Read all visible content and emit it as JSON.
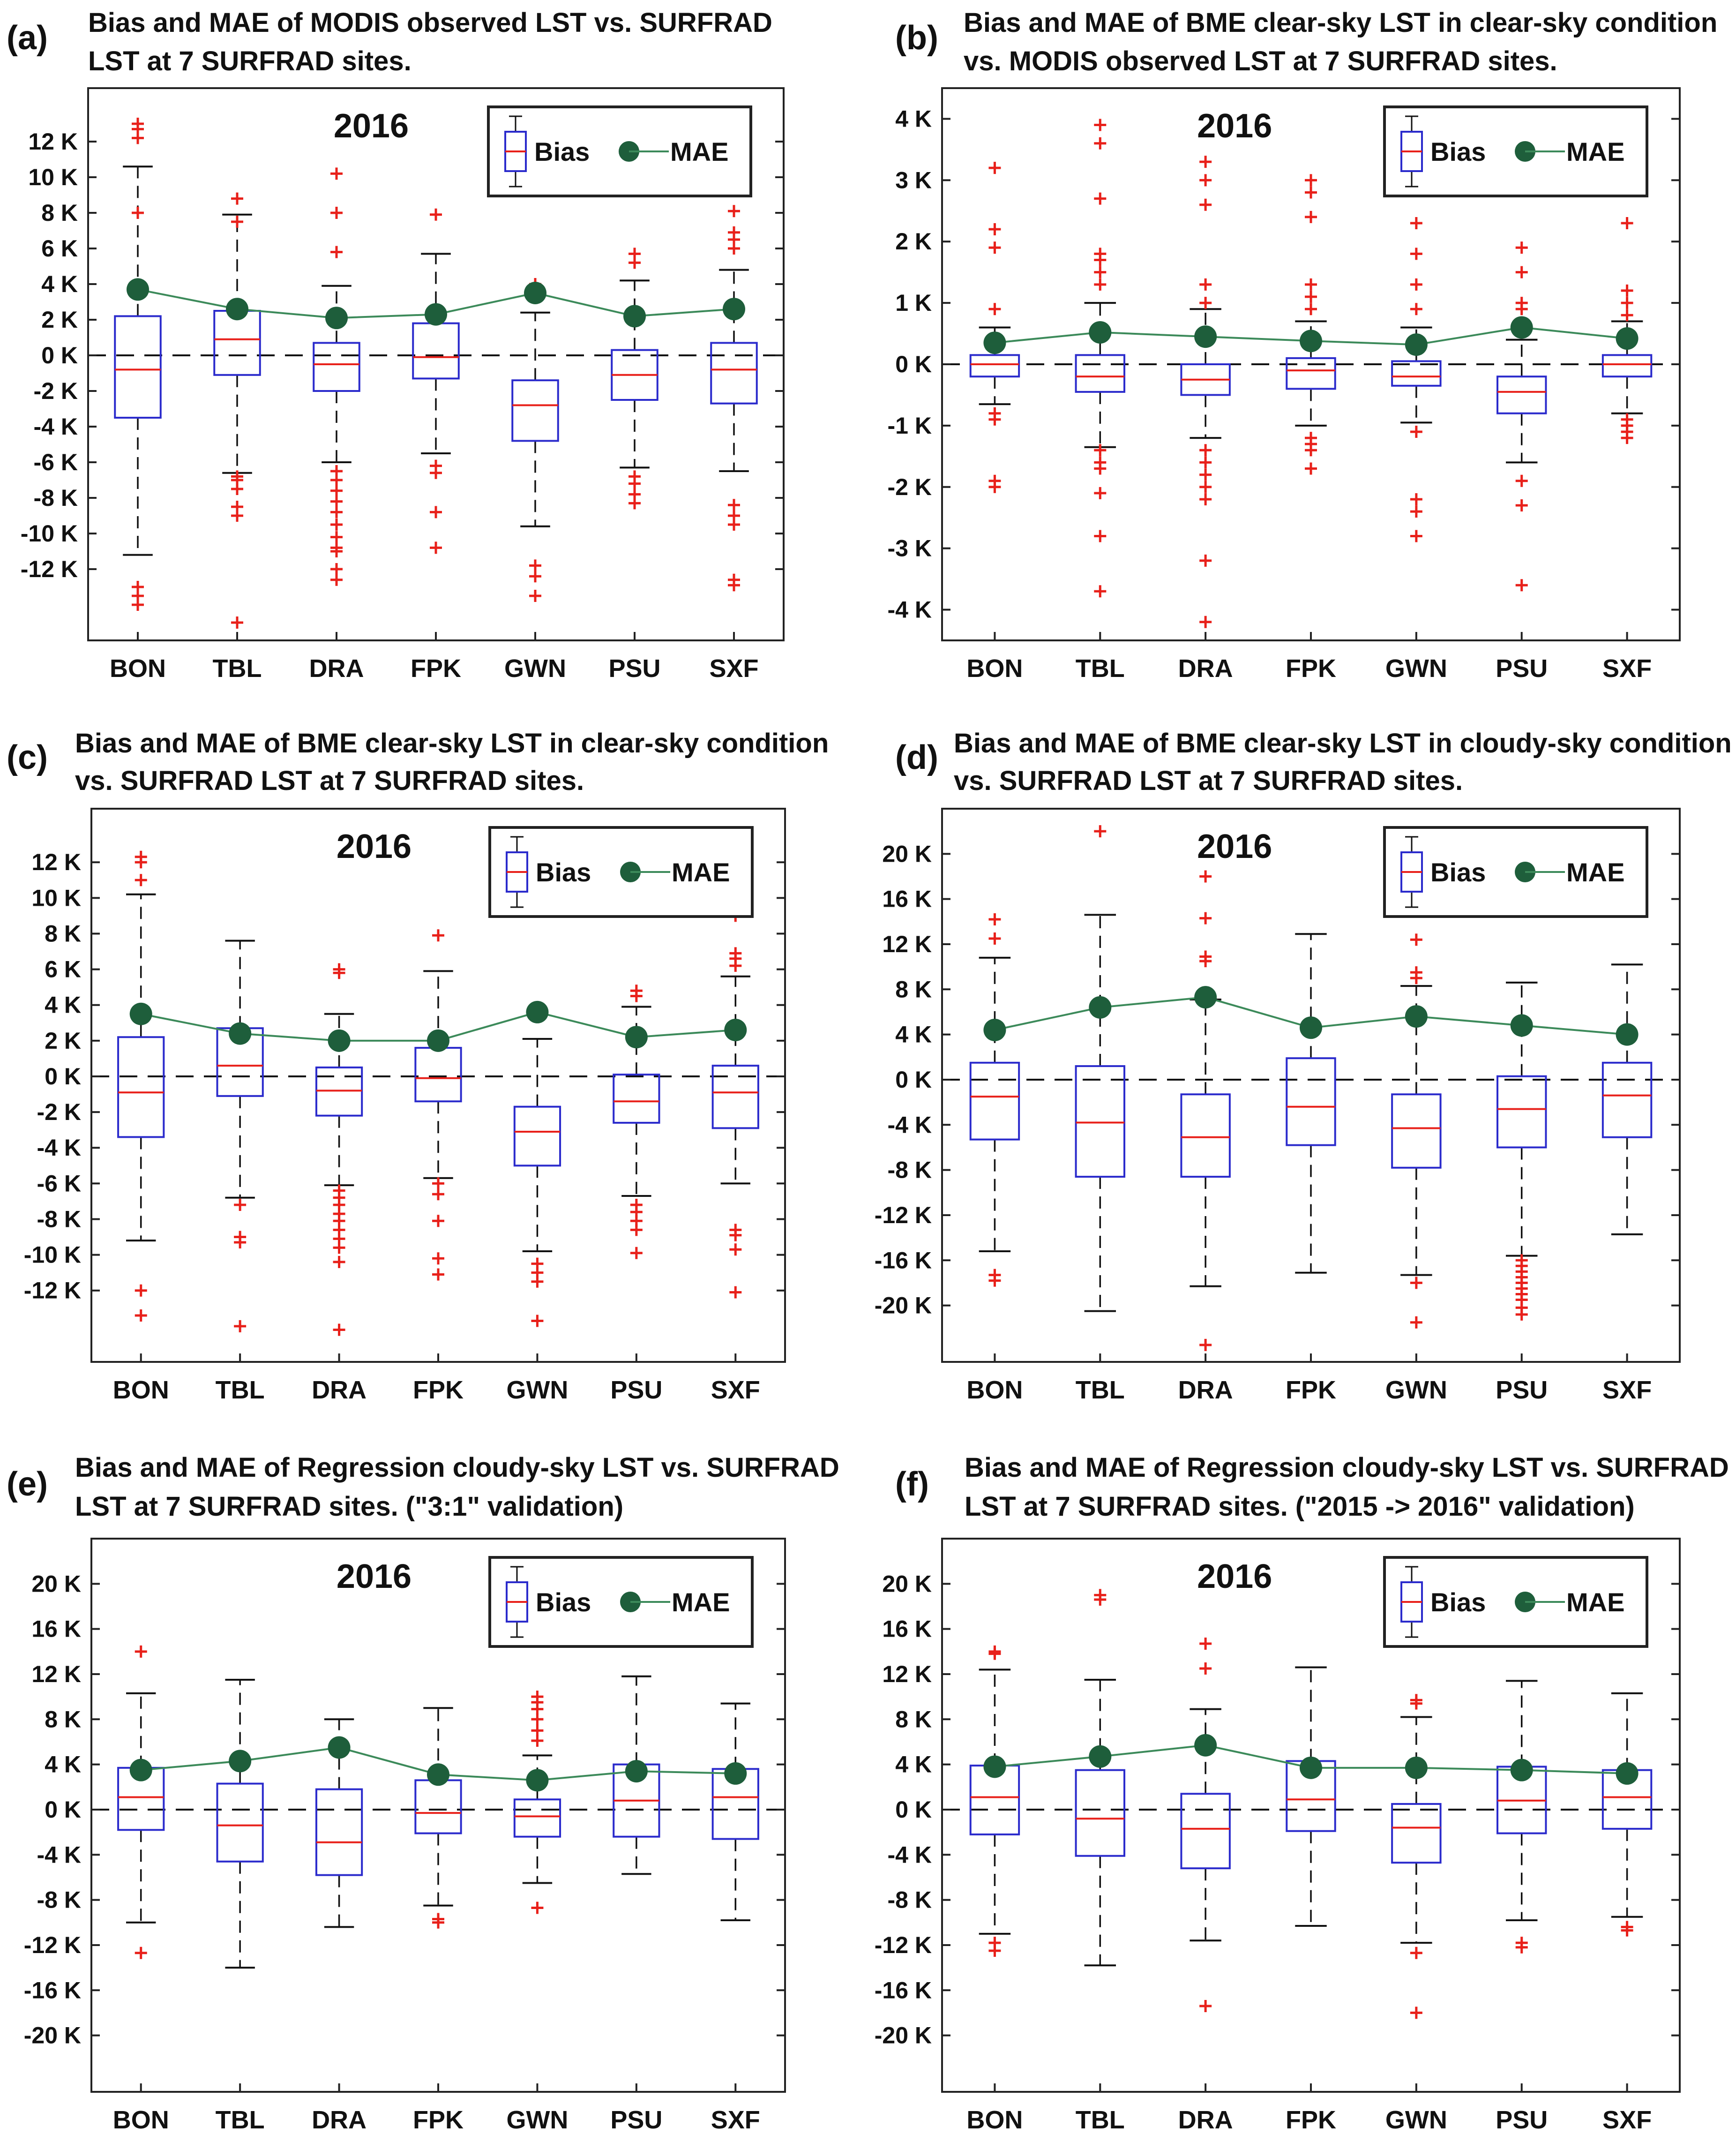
{
  "figure": {
    "site_labels": [
      "BON",
      "TBL",
      "DRA",
      "FPK",
      "GWN",
      "PSU",
      "SXF"
    ],
    "year_label": "2016",
    "legend": {
      "bias": "Bias",
      "mae": "MAE"
    },
    "colors": {
      "box": "#2b2bcc",
      "median": "#e8201a",
      "outlier": "#e8201a",
      "mae": "#1e5e3b",
      "mae_line": "#3c8a5a",
      "whisker": "#111111"
    }
  },
  "chart_data": [
    {
      "id": "a",
      "panel_label": "(a)",
      "type": "boxplot",
      "title_line1": "Bias and MAE of MODIS observed LST vs. SURFRAD",
      "title_line2": "LST at 7 SURFRAD sites.",
      "ylim": [
        -16,
        15
      ],
      "ytick_values": [
        12,
        10,
        8,
        6,
        4,
        2,
        0,
        -2,
        -4,
        -6,
        -8,
        -10,
        -12
      ],
      "ytick_labels": [
        "12 K",
        "10 K",
        "8 K",
        "6 K",
        "4 K",
        "2 K",
        "0 K",
        "-2 K",
        "-4 K",
        "-6 K",
        "-8 K",
        "-10 K",
        "-12 K"
      ],
      "boxes": [
        {
          "site": "BON",
          "wl": -11.2,
          "q1": -3.5,
          "med": -0.8,
          "q3": 2.2,
          "wh": 10.6,
          "out": [
            -13,
            -13.5,
            -14,
            8,
            12.2,
            12.7,
            13
          ]
        },
        {
          "site": "TBL",
          "wl": -6.6,
          "q1": -1.1,
          "med": 0.9,
          "q3": 2.5,
          "wh": 7.9,
          "out": [
            -6.8,
            -7,
            -7.5,
            -8.5,
            -9,
            -15,
            7.5,
            8.8
          ]
        },
        {
          "site": "DRA",
          "wl": -6,
          "q1": -2,
          "med": -0.5,
          "q3": 0.7,
          "wh": 3.9,
          "out": [
            -6.5,
            -7,
            -7.6,
            -8.2,
            -8.8,
            -9.5,
            -10.2,
            -10.8,
            -11,
            -12,
            -12.6,
            5.8,
            8,
            10.2
          ]
        },
        {
          "site": "FPK",
          "wl": -5.5,
          "q1": -1.3,
          "med": -0.1,
          "q3": 1.8,
          "wh": 5.7,
          "out": [
            -6.2,
            -6.6,
            -8.8,
            -10.8,
            7.9
          ]
        },
        {
          "site": "GWN",
          "wl": -9.6,
          "q1": -4.8,
          "med": -2.8,
          "q3": -1.4,
          "wh": 2.4,
          "out": [
            -11.8,
            -12.4,
            -13.5,
            4
          ]
        },
        {
          "site": "PSU",
          "wl": -6.3,
          "q1": -2.5,
          "med": -1.1,
          "q3": 0.3,
          "wh": 4.2,
          "out": [
            -6.8,
            -7.2,
            -7.8,
            -8.3,
            5.2,
            5.7
          ]
        },
        {
          "site": "SXF",
          "wl": -6.5,
          "q1": -2.7,
          "med": -0.8,
          "q3": 0.7,
          "wh": 4.8,
          "out": [
            -8.4,
            -9,
            -9.5,
            -12.6,
            -12.9,
            6,
            6.5,
            6.9,
            8.1
          ]
        }
      ],
      "mae": [
        3.7,
        2.6,
        2.1,
        2.3,
        3.5,
        2.2,
        2.6
      ]
    },
    {
      "id": "b",
      "panel_label": "(b)",
      "type": "boxplot",
      "title_line1": "Bias and MAE of BME clear-sky LST in clear-sky condition",
      "title_line2": "vs. MODIS observed LST at 7 SURFRAD sites.",
      "ylim": [
        -4.5,
        4.5
      ],
      "ytick_values": [
        4,
        3,
        2,
        1,
        0,
        -1,
        -2,
        -3,
        -4
      ],
      "ytick_labels": [
        "4 K",
        "3 K",
        "2 K",
        "1 K",
        "0 K",
        "-1 K",
        "-2 K",
        "-3 K",
        "-4 K"
      ],
      "boxes": [
        {
          "site": "BON",
          "wl": -0.65,
          "q1": -0.2,
          "med": 0.0,
          "q3": 0.15,
          "wh": 0.6,
          "out": [
            -0.8,
            -0.9,
            -1.9,
            -2.0,
            0.9,
            1.9,
            2.2,
            3.2
          ]
        },
        {
          "site": "TBL",
          "wl": -1.35,
          "q1": -0.45,
          "med": -0.2,
          "q3": 0.15,
          "wh": 1.0,
          "out": [
            -1.4,
            -1.6,
            -1.7,
            -2.1,
            -2.8,
            -3.7,
            1.3,
            1.5,
            1.7,
            1.8,
            2.7,
            3.6,
            3.9
          ]
        },
        {
          "site": "DRA",
          "wl": -1.2,
          "q1": -0.5,
          "med": -0.25,
          "q3": 0,
          "wh": 0.9,
          "out": [
            -1.4,
            -1.6,
            -1.8,
            -2.0,
            -2.2,
            -3.2,
            -4.2,
            1.0,
            1.3,
            2.6,
            3.0,
            3.3
          ]
        },
        {
          "site": "FPK",
          "wl": -1.0,
          "q1": -0.4,
          "med": -0.1,
          "q3": 0.1,
          "wh": 0.7,
          "out": [
            -1.2,
            -1.3,
            -1.4,
            -1.7,
            0.9,
            1.1,
            1.3,
            2.4,
            2.8,
            3.0
          ]
        },
        {
          "site": "GWN",
          "wl": -0.95,
          "q1": -0.35,
          "med": -0.2,
          "q3": 0.05,
          "wh": 0.6,
          "out": [
            -1.1,
            -2.2,
            -2.4,
            -2.8,
            0.9,
            1.3,
            1.8,
            2.3
          ]
        },
        {
          "site": "PSU",
          "wl": -1.6,
          "q1": -0.8,
          "med": -0.45,
          "q3": -0.2,
          "wh": 0.4,
          "out": [
            -1.9,
            -2.3,
            -3.6,
            0.9,
            1.0,
            1.5,
            1.9,
            3.0
          ]
        },
        {
          "site": "SXF",
          "wl": -0.8,
          "q1": -0.2,
          "med": 0.0,
          "q3": 0.15,
          "wh": 0.7,
          "out": [
            -0.9,
            -1.0,
            -1.1,
            -1.2,
            0.8,
            1.0,
            1.2,
            2.3,
            3.0
          ]
        }
      ],
      "mae": [
        0.35,
        0.52,
        0.45,
        0.38,
        0.32,
        0.6,
        0.42
      ]
    },
    {
      "id": "c",
      "panel_label": "(c)",
      "type": "boxplot",
      "title_line1": "Bias and MAE of BME clear-sky LST in clear-sky condition",
      "title_line2": "vs. SURFRAD LST at 7 SURFRAD sites.",
      "ylim": [
        -16,
        15
      ],
      "ytick_values": [
        12,
        10,
        8,
        6,
        4,
        2,
        0,
        -2,
        -4,
        -6,
        -8,
        -10,
        -12
      ],
      "ytick_labels": [
        "12 K",
        "10 K",
        "8 K",
        "6 K",
        "4 K",
        "2 K",
        "0 K",
        "-2 K",
        "-4 K",
        "-6 K",
        "-8 K",
        "-10 K",
        "-12 K"
      ],
      "boxes": [
        {
          "site": "BON",
          "wl": -9.2,
          "q1": -3.4,
          "med": -0.9,
          "q3": 2.2,
          "wh": 10.2,
          "out": [
            -12,
            -13.4,
            11,
            12,
            12.3
          ]
        },
        {
          "site": "TBL",
          "wl": -6.8,
          "q1": -1.1,
          "med": 0.6,
          "q3": 2.7,
          "wh": 7.6,
          "out": [
            -7.2,
            -9,
            -9.3,
            -14
          ]
        },
        {
          "site": "DRA",
          "wl": -6.1,
          "q1": -2.2,
          "med": -0.8,
          "q3": 0.5,
          "wh": 3.5,
          "out": [
            -6.4,
            -6.8,
            -7.2,
            -7.7,
            -8.1,
            -8.6,
            -9.1,
            -9.6,
            -10.4,
            -14.2,
            5.8,
            6
          ]
        },
        {
          "site": "FPK",
          "wl": -5.7,
          "q1": -1.4,
          "med": -0.1,
          "q3": 1.6,
          "wh": 5.9,
          "out": [
            -6,
            -6.6,
            -8.1,
            -10.2,
            -11.1,
            7.9
          ]
        },
        {
          "site": "GWN",
          "wl": -9.8,
          "q1": -5,
          "med": -3.1,
          "q3": -1.7,
          "wh": 2.1,
          "out": [
            -10.5,
            -11,
            -11.5,
            -13.7,
            3.6
          ]
        },
        {
          "site": "PSU",
          "wl": -6.7,
          "q1": -2.6,
          "med": -1.4,
          "q3": 0.1,
          "wh": 3.9,
          "out": [
            -7.2,
            -7.6,
            -8.1,
            -8.6,
            -9.9,
            4.5,
            4.8
          ]
        },
        {
          "site": "SXF",
          "wl": -6,
          "q1": -2.9,
          "med": -0.9,
          "q3": 0.6,
          "wh": 5.6,
          "out": [
            -8.6,
            -8.9,
            -9.7,
            -12.1,
            6.2,
            6.6,
            6.9,
            9
          ]
        }
      ],
      "mae": [
        3.5,
        2.4,
        2.0,
        2.0,
        3.6,
        2.2,
        2.6
      ]
    },
    {
      "id": "d",
      "panel_label": "(d)",
      "type": "boxplot",
      "title_line1": "Bias and MAE of BME clear-sky LST in cloudy-sky condition",
      "title_line2": "vs. SURFRAD LST at 7 SURFRAD sites.",
      "ylim": [
        -25,
        24
      ],
      "ytick_values": [
        20,
        16,
        12,
        8,
        4,
        0,
        -4,
        -8,
        -12,
        -16,
        -20
      ],
      "ytick_labels": [
        "20 K",
        "16 K",
        "12 K",
        "8 K",
        "4 K",
        "0 K",
        "-4 K",
        "-8 K",
        "-12 K",
        "-16 K",
        "-20 K"
      ],
      "boxes": [
        {
          "site": "BON",
          "wl": -15.2,
          "q1": -5.3,
          "med": -1.5,
          "q3": 1.5,
          "wh": 10.8,
          "out": [
            -17.3,
            -17.8,
            12.5,
            14.2
          ]
        },
        {
          "site": "TBL",
          "wl": -20.5,
          "q1": -8.6,
          "med": -3.8,
          "q3": 1.2,
          "wh": 14.6,
          "out": [
            22
          ]
        },
        {
          "site": "DRA",
          "wl": -18.3,
          "q1": -8.6,
          "med": -5.1,
          "q3": -1.3,
          "wh": 7.1,
          "out": [
            -23.5,
            10.5,
            10.9,
            14.3,
            18
          ]
        },
        {
          "site": "FPK",
          "wl": -17.1,
          "q1": -5.8,
          "med": -2.4,
          "q3": 1.9,
          "wh": 12.9,
          "out": []
        },
        {
          "site": "GWN",
          "wl": -17.3,
          "q1": -7.8,
          "med": -4.3,
          "q3": -1.3,
          "wh": 8.3,
          "out": [
            -18,
            -21.5,
            9,
            9.5,
            12.4
          ]
        },
        {
          "site": "PSU",
          "wl": -15.6,
          "q1": -6,
          "med": -2.6,
          "q3": 0.3,
          "wh": 8.6,
          "out": [
            -16,
            -16.5,
            -17,
            -17.5,
            -18,
            -18.5,
            -19,
            -19.5,
            -20.2,
            -20.8
          ]
        },
        {
          "site": "SXF",
          "wl": -13.7,
          "q1": -5.1,
          "med": -1.4,
          "q3": 1.5,
          "wh": 10.2,
          "out": []
        }
      ],
      "mae": [
        4.4,
        6.4,
        7.3,
        4.6,
        5.6,
        4.8,
        4.0
      ]
    },
    {
      "id": "e",
      "panel_label": "(e)",
      "type": "boxplot",
      "title_line1": "Bias and MAE of Regression cloudy-sky LST vs. SURFRAD",
      "title_line2": "LST at 7 SURFRAD sites. (\"3:1\" validation)",
      "ylim": [
        -25,
        24
      ],
      "ytick_values": [
        20,
        16,
        12,
        8,
        4,
        0,
        -4,
        -8,
        -12,
        -16,
        -20
      ],
      "ytick_labels": [
        "20 K",
        "16 K",
        "12 K",
        "8 K",
        "4 K",
        "0 K",
        "-4 K",
        "-8 K",
        "-12 K",
        "-16 K",
        "-20 K"
      ],
      "boxes": [
        {
          "site": "BON",
          "wl": -10,
          "q1": -1.8,
          "med": 1.1,
          "q3": 3.7,
          "wh": 10.3,
          "out": [
            -12.7,
            14
          ]
        },
        {
          "site": "TBL",
          "wl": -14,
          "q1": -4.6,
          "med": -1.4,
          "q3": 2.3,
          "wh": 11.5,
          "out": []
        },
        {
          "site": "DRA",
          "wl": -10.4,
          "q1": -5.8,
          "med": -2.9,
          "q3": 1.8,
          "wh": 8,
          "out": []
        },
        {
          "site": "FPK",
          "wl": -8.5,
          "q1": -2.1,
          "med": -0.3,
          "q3": 2.6,
          "wh": 9,
          "out": [
            -9.7,
            -10
          ]
        },
        {
          "site": "GWN",
          "wl": -6.5,
          "q1": -2.4,
          "med": -0.6,
          "q3": 0.9,
          "wh": 4.8,
          "out": [
            -8.7,
            6.1,
            7,
            8,
            8.9,
            9.5,
            10
          ]
        },
        {
          "site": "PSU",
          "wl": -5.7,
          "q1": -2.4,
          "med": 0.8,
          "q3": 4,
          "wh": 11.8,
          "out": []
        },
        {
          "site": "SXF",
          "wl": -9.8,
          "q1": -2.6,
          "med": 1.1,
          "q3": 3.6,
          "wh": 9.4,
          "out": []
        }
      ],
      "mae": [
        3.5,
        4.3,
        5.5,
        3.1,
        2.6,
        3.4,
        3.2
      ]
    },
    {
      "id": "f",
      "panel_label": "(f)",
      "type": "boxplot",
      "title_line1": "Bias and MAE of Regression cloudy-sky LST vs. SURFRAD",
      "title_line2": "LST at 7 SURFRAD sites. (\"2015 -> 2016\" validation)",
      "ylim": [
        -25,
        24
      ],
      "ytick_values": [
        20,
        16,
        12,
        8,
        4,
        0,
        -4,
        -8,
        -12,
        -16,
        -20
      ],
      "ytick_labels": [
        "20 K",
        "16 K",
        "12 K",
        "8 K",
        "4 K",
        "0 K",
        "-4 K",
        "-8 K",
        "-12 K",
        "-16 K",
        "-20 K"
      ],
      "boxes": [
        {
          "site": "BON",
          "wl": -11,
          "q1": -2.2,
          "med": 1.1,
          "q3": 3.9,
          "wh": 12.4,
          "out": [
            -11.8,
            -12.5,
            13.8,
            14
          ]
        },
        {
          "site": "TBL",
          "wl": -13.8,
          "q1": -4.1,
          "med": -0.8,
          "q3": 3.5,
          "wh": 11.5,
          "out": [
            18.6,
            19
          ]
        },
        {
          "site": "DRA",
          "wl": -11.6,
          "q1": -5.2,
          "med": -1.7,
          "q3": 1.4,
          "wh": 8.9,
          "out": [
            -17.4,
            12.5,
            14.7
          ]
        },
        {
          "site": "FPK",
          "wl": -10.3,
          "q1": -1.9,
          "med": 0.9,
          "q3": 4.3,
          "wh": 12.6,
          "out": []
        },
        {
          "site": "GWN",
          "wl": -11.8,
          "q1": -4.7,
          "med": -1.6,
          "q3": 0.5,
          "wh": 8.2,
          "out": [
            -12.7,
            -18,
            9.4,
            9.7
          ]
        },
        {
          "site": "PSU",
          "wl": -9.8,
          "q1": -2.1,
          "med": 0.8,
          "q3": 3.8,
          "wh": 11.4,
          "out": [
            -11.8,
            -12.2
          ]
        },
        {
          "site": "SXF",
          "wl": -9.5,
          "q1": -1.7,
          "med": 1.1,
          "q3": 3.5,
          "wh": 10.3,
          "out": [
            -10.4,
            -10.7
          ]
        }
      ],
      "mae": [
        3.8,
        4.7,
        5.7,
        3.7,
        3.7,
        3.5,
        3.2
      ]
    }
  ]
}
